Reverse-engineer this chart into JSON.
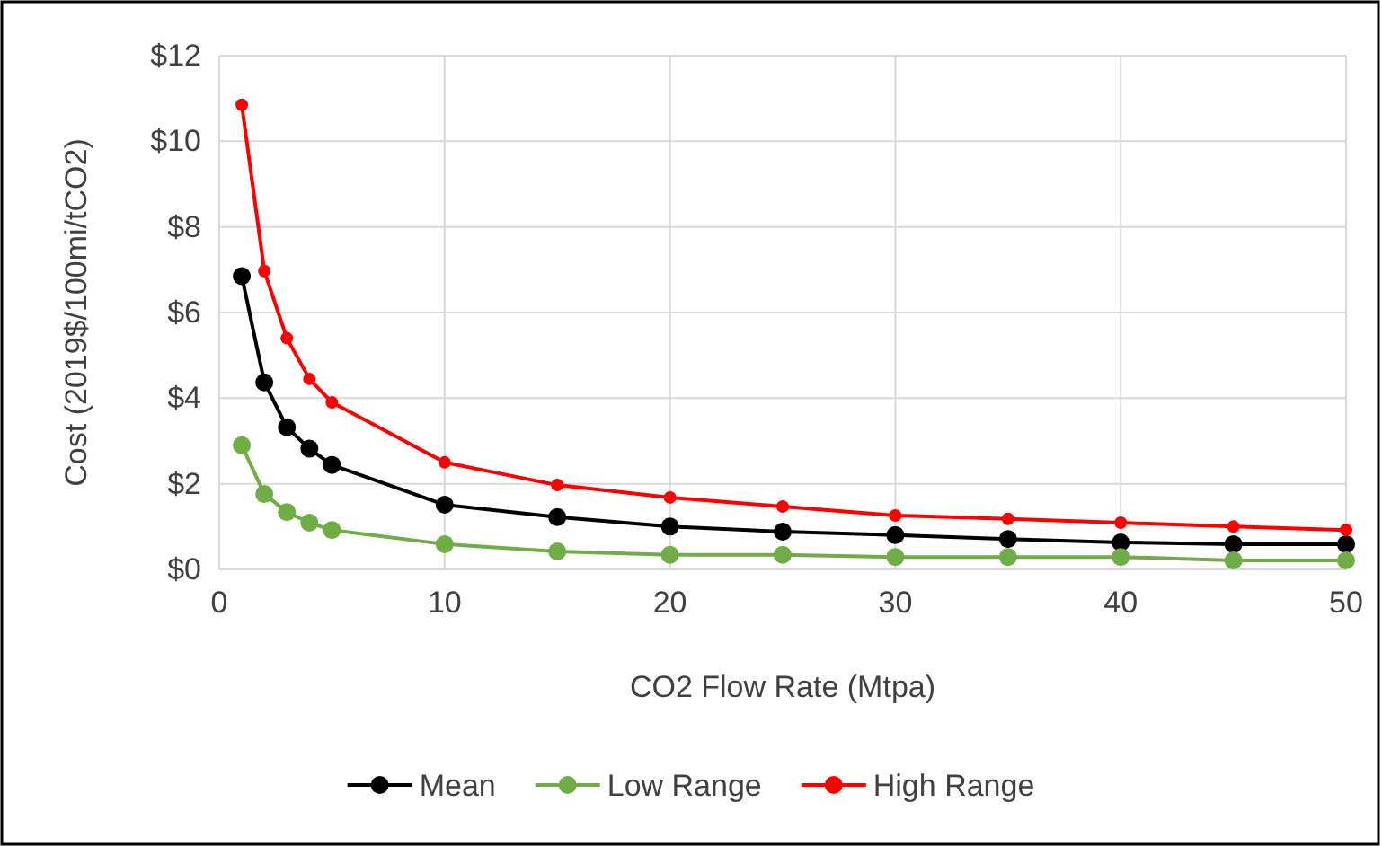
{
  "chart_data": {
    "type": "line",
    "xlabel": "CO2 Flow Rate (Mtpa)",
    "ylabel": "Cost (2019$/100mi/tCO2)",
    "x": [
      1,
      2,
      3,
      4,
      5,
      10,
      15,
      20,
      25,
      30,
      35,
      40,
      45,
      50
    ],
    "series": [
      {
        "name": "Mean",
        "color": "#000000",
        "values": [
          6.85,
          4.37,
          3.32,
          2.82,
          2.44,
          1.51,
          1.22,
          1.0,
          0.88,
          0.8,
          0.71,
          0.63,
          0.59,
          0.59
        ]
      },
      {
        "name": "Low Range",
        "color": "#70ad47",
        "values": [
          2.9,
          1.76,
          1.34,
          1.09,
          0.92,
          0.59,
          0.42,
          0.34,
          0.34,
          0.29,
          0.29,
          0.29,
          0.21,
          0.21
        ]
      },
      {
        "name": "High Range",
        "color": "#ff0000",
        "values": [
          10.85,
          6.97,
          5.4,
          4.45,
          3.9,
          2.5,
          1.97,
          1.68,
          1.47,
          1.26,
          1.18,
          1.09,
          1.0,
          0.92
        ]
      }
    ],
    "xlim": [
      0,
      50
    ],
    "xticks": [
      0,
      10,
      20,
      30,
      40,
      50
    ],
    "ylim": [
      0,
      12
    ],
    "yticks": [
      {
        "value": 0,
        "label": "$0"
      },
      {
        "value": 2,
        "label": "$2"
      },
      {
        "value": 4,
        "label": "$4"
      },
      {
        "value": 6,
        "label": "$6"
      },
      {
        "value": 8,
        "label": "$8"
      },
      {
        "value": 10,
        "label": "$10"
      },
      {
        "value": 12,
        "label": "$12"
      }
    ],
    "grid": true,
    "legend": "bottom",
    "marker": "circle",
    "line_style": "solid"
  }
}
